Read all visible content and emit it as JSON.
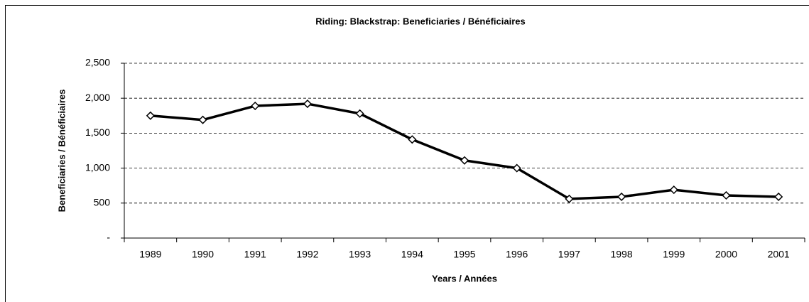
{
  "chart_data": {
    "type": "line",
    "title": "Riding:  Blackstrap:  Beneficiaries / Bénéficiaires",
    "x_label": "Years / Années",
    "y_label": "Beneficiaries / Bénéficiaires",
    "categories": [
      "1989",
      "1990",
      "1991",
      "1992",
      "1993",
      "1994",
      "1995",
      "1996",
      "1997",
      "1998",
      "1999",
      "2000",
      "2001"
    ],
    "values": [
      1750,
      1690,
      1890,
      1920,
      1780,
      1410,
      1110,
      1000,
      560,
      590,
      690,
      610,
      590
    ],
    "color": "#000000",
    "ylim": [
      0,
      2500
    ],
    "yticks": [
      {
        "value": 0,
        "label": "-"
      },
      500,
      {
        "value": 1000,
        "label": "1,000"
      },
      {
        "value": 1500,
        "label": "1,500"
      },
      {
        "value": 2000,
        "label": "2,000"
      },
      {
        "value": 2500,
        "label": "2,500"
      }
    ],
    "grid": true
  }
}
